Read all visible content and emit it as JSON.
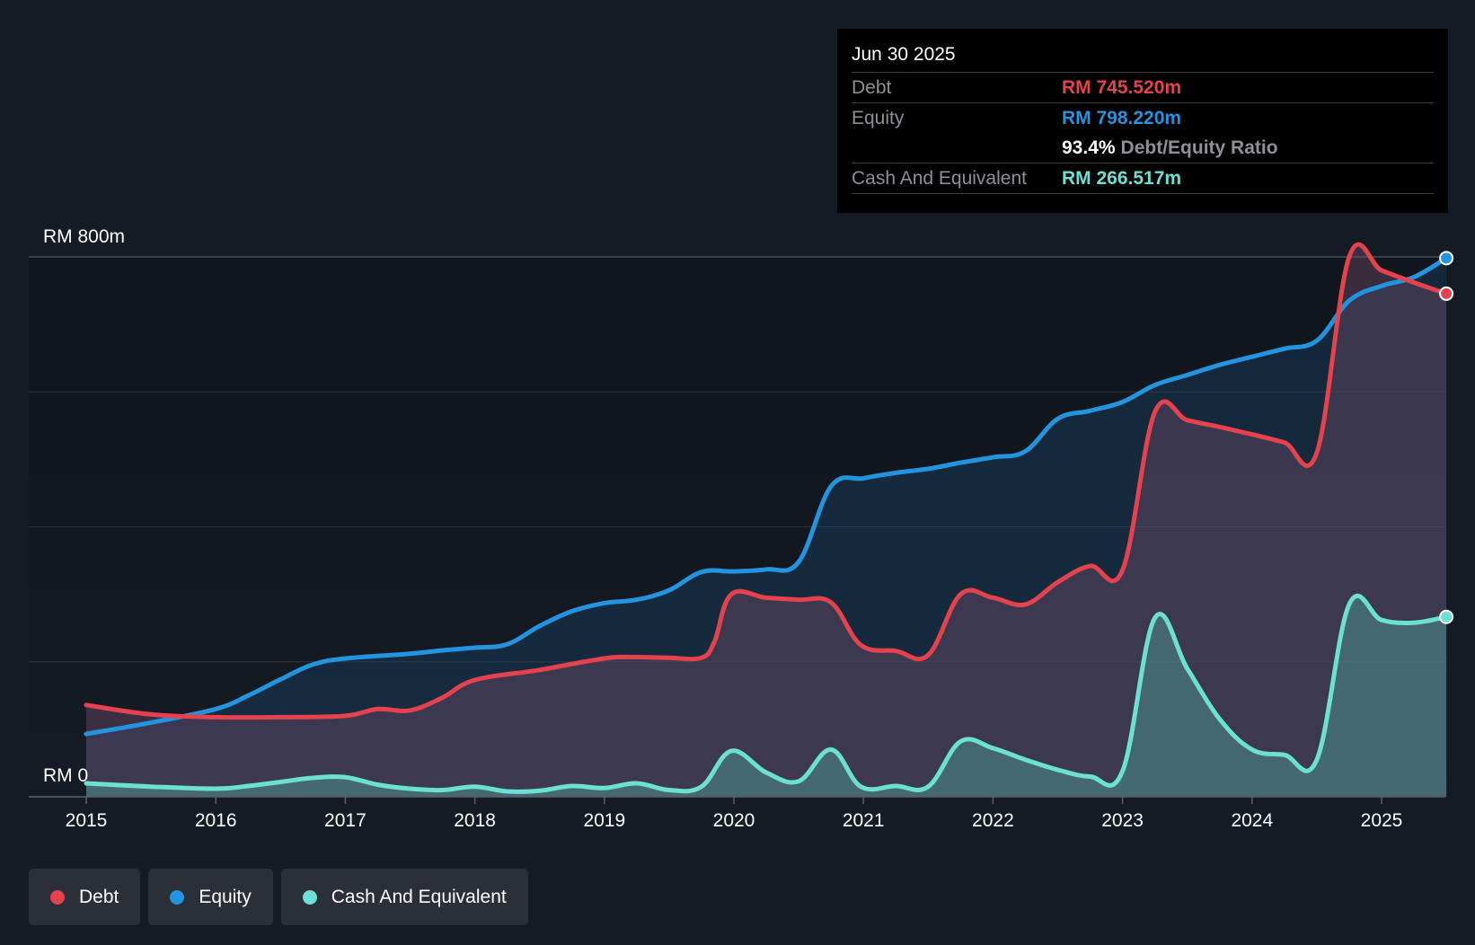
{
  "tooltip": {
    "date": "Jun 30 2025",
    "debt_label": "Debt",
    "debt_value": "RM 745.520m",
    "equity_label": "Equity",
    "equity_value": "RM 798.220m",
    "ratio_value": "93.4%",
    "ratio_label": "Debt/Equity Ratio",
    "cash_label": "Cash And Equivalent",
    "cash_value": "RM 266.517m"
  },
  "legend": {
    "debt": "Debt",
    "equity": "Equity",
    "cash": "Cash And Equivalent"
  },
  "colors": {
    "debt": "#e5424d",
    "equity": "#2394df",
    "cash": "#6be0d3",
    "background": "#151b24"
  },
  "chart_data": {
    "type": "area",
    "title": "",
    "ylabel_top": "RM 800m",
    "ylabel_bottom": "RM 0",
    "ylim": [
      0,
      800
    ],
    "x_ticks": [
      "2015",
      "2016",
      "2017",
      "2018",
      "2019",
      "2020",
      "2021",
      "2022",
      "2023",
      "2024",
      "2025"
    ],
    "series": [
      {
        "name": "Debt",
        "key": "debt",
        "points": [
          [
            2015.0,
            136
          ],
          [
            2015.5,
            122
          ],
          [
            2016.0,
            118
          ],
          [
            2016.5,
            118
          ],
          [
            2017.0,
            120
          ],
          [
            2017.25,
            130
          ],
          [
            2017.5,
            128
          ],
          [
            2017.75,
            147
          ],
          [
            2018.0,
            173
          ],
          [
            2018.5,
            188
          ],
          [
            2019.0,
            205
          ],
          [
            2019.25,
            207
          ],
          [
            2019.5,
            206
          ],
          [
            2019.75,
            206
          ],
          [
            2019.85,
            230
          ],
          [
            2019.98,
            300
          ],
          [
            2020.25,
            295
          ],
          [
            2020.5,
            292
          ],
          [
            2020.75,
            288
          ],
          [
            2020.98,
            225
          ],
          [
            2021.25,
            216
          ],
          [
            2021.5,
            210
          ],
          [
            2021.75,
            300
          ],
          [
            2022.0,
            295
          ],
          [
            2022.25,
            285
          ],
          [
            2022.5,
            318
          ],
          [
            2022.75,
            342
          ],
          [
            2023.0,
            336
          ],
          [
            2023.25,
            570
          ],
          [
            2023.5,
            558
          ],
          [
            2023.75,
            548
          ],
          [
            2024.0,
            537
          ],
          [
            2024.25,
            525
          ],
          [
            2024.5,
            510
          ],
          [
            2024.75,
            800
          ],
          [
            2025.0,
            780
          ],
          [
            2025.25,
            762
          ],
          [
            2025.5,
            745.52
          ]
        ]
      },
      {
        "name": "Equity",
        "key": "equity",
        "points": [
          [
            2015.0,
            93
          ],
          [
            2015.5,
            110
          ],
          [
            2016.0,
            130
          ],
          [
            2016.25,
            150
          ],
          [
            2016.5,
            174
          ],
          [
            2016.75,
            196
          ],
          [
            2017.0,
            205
          ],
          [
            2017.5,
            212
          ],
          [
            2017.75,
            217
          ],
          [
            2018.0,
            221
          ],
          [
            2018.25,
            226
          ],
          [
            2018.5,
            253
          ],
          [
            2018.75,
            275
          ],
          [
            2019.0,
            287
          ],
          [
            2019.25,
            292
          ],
          [
            2019.5,
            306
          ],
          [
            2019.75,
            333
          ],
          [
            2020.0,
            334
          ],
          [
            2020.25,
            337
          ],
          [
            2020.5,
            348
          ],
          [
            2020.75,
            460
          ],
          [
            2021.0,
            472
          ],
          [
            2021.25,
            480
          ],
          [
            2021.5,
            486
          ],
          [
            2021.75,
            495
          ],
          [
            2022.0,
            503
          ],
          [
            2022.25,
            512
          ],
          [
            2022.5,
            560
          ],
          [
            2022.75,
            572
          ],
          [
            2023.0,
            585
          ],
          [
            2023.25,
            610
          ],
          [
            2023.5,
            625
          ],
          [
            2023.75,
            640
          ],
          [
            2024.0,
            652
          ],
          [
            2024.25,
            664
          ],
          [
            2024.5,
            676
          ],
          [
            2024.75,
            735
          ],
          [
            2025.0,
            757
          ],
          [
            2025.25,
            770
          ],
          [
            2025.5,
            798.22
          ]
        ]
      },
      {
        "name": "Cash And Equivalent",
        "key": "cash",
        "points": [
          [
            2015.0,
            20
          ],
          [
            2015.5,
            15
          ],
          [
            2016.0,
            12
          ],
          [
            2016.25,
            16
          ],
          [
            2016.5,
            22
          ],
          [
            2016.75,
            28
          ],
          [
            2017.0,
            29
          ],
          [
            2017.25,
            18
          ],
          [
            2017.5,
            12
          ],
          [
            2017.75,
            10
          ],
          [
            2018.0,
            15
          ],
          [
            2018.25,
            8
          ],
          [
            2018.5,
            9
          ],
          [
            2018.75,
            16
          ],
          [
            2019.0,
            13
          ],
          [
            2019.25,
            20
          ],
          [
            2019.5,
            10
          ],
          [
            2019.75,
            15
          ],
          [
            2019.98,
            68
          ],
          [
            2020.25,
            36
          ],
          [
            2020.5,
            23
          ],
          [
            2020.75,
            70
          ],
          [
            2020.98,
            15
          ],
          [
            2021.25,
            16
          ],
          [
            2021.5,
            15
          ],
          [
            2021.75,
            82
          ],
          [
            2022.0,
            72
          ],
          [
            2022.25,
            55
          ],
          [
            2022.5,
            40
          ],
          [
            2022.75,
            30
          ],
          [
            2023.0,
            38
          ],
          [
            2023.25,
            265
          ],
          [
            2023.5,
            190
          ],
          [
            2023.75,
            115
          ],
          [
            2024.0,
            70
          ],
          [
            2024.25,
            62
          ],
          [
            2024.5,
            55
          ],
          [
            2024.75,
            285
          ],
          [
            2025.0,
            262
          ],
          [
            2025.25,
            258
          ],
          [
            2025.5,
            266.52
          ]
        ]
      }
    ]
  }
}
